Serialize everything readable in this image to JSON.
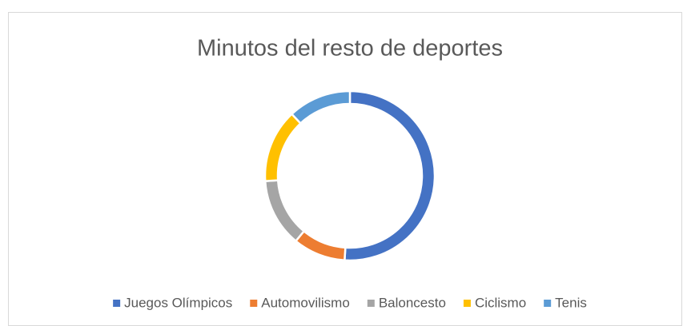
{
  "chart_data": {
    "type": "donut",
    "title": "Minutos del resto de deportes",
    "categories": [
      "Juegos Olímpicos",
      "Automovilismo",
      "Baloncesto",
      "Ciclismo",
      "Tenis"
    ],
    "values": [
      51,
      10,
      13,
      14,
      12
    ],
    "colors": [
      "#4472c4",
      "#ed7d31",
      "#a5a5a5",
      "#ffc000",
      "#5b9bd5"
    ],
    "legend": "bottom"
  }
}
